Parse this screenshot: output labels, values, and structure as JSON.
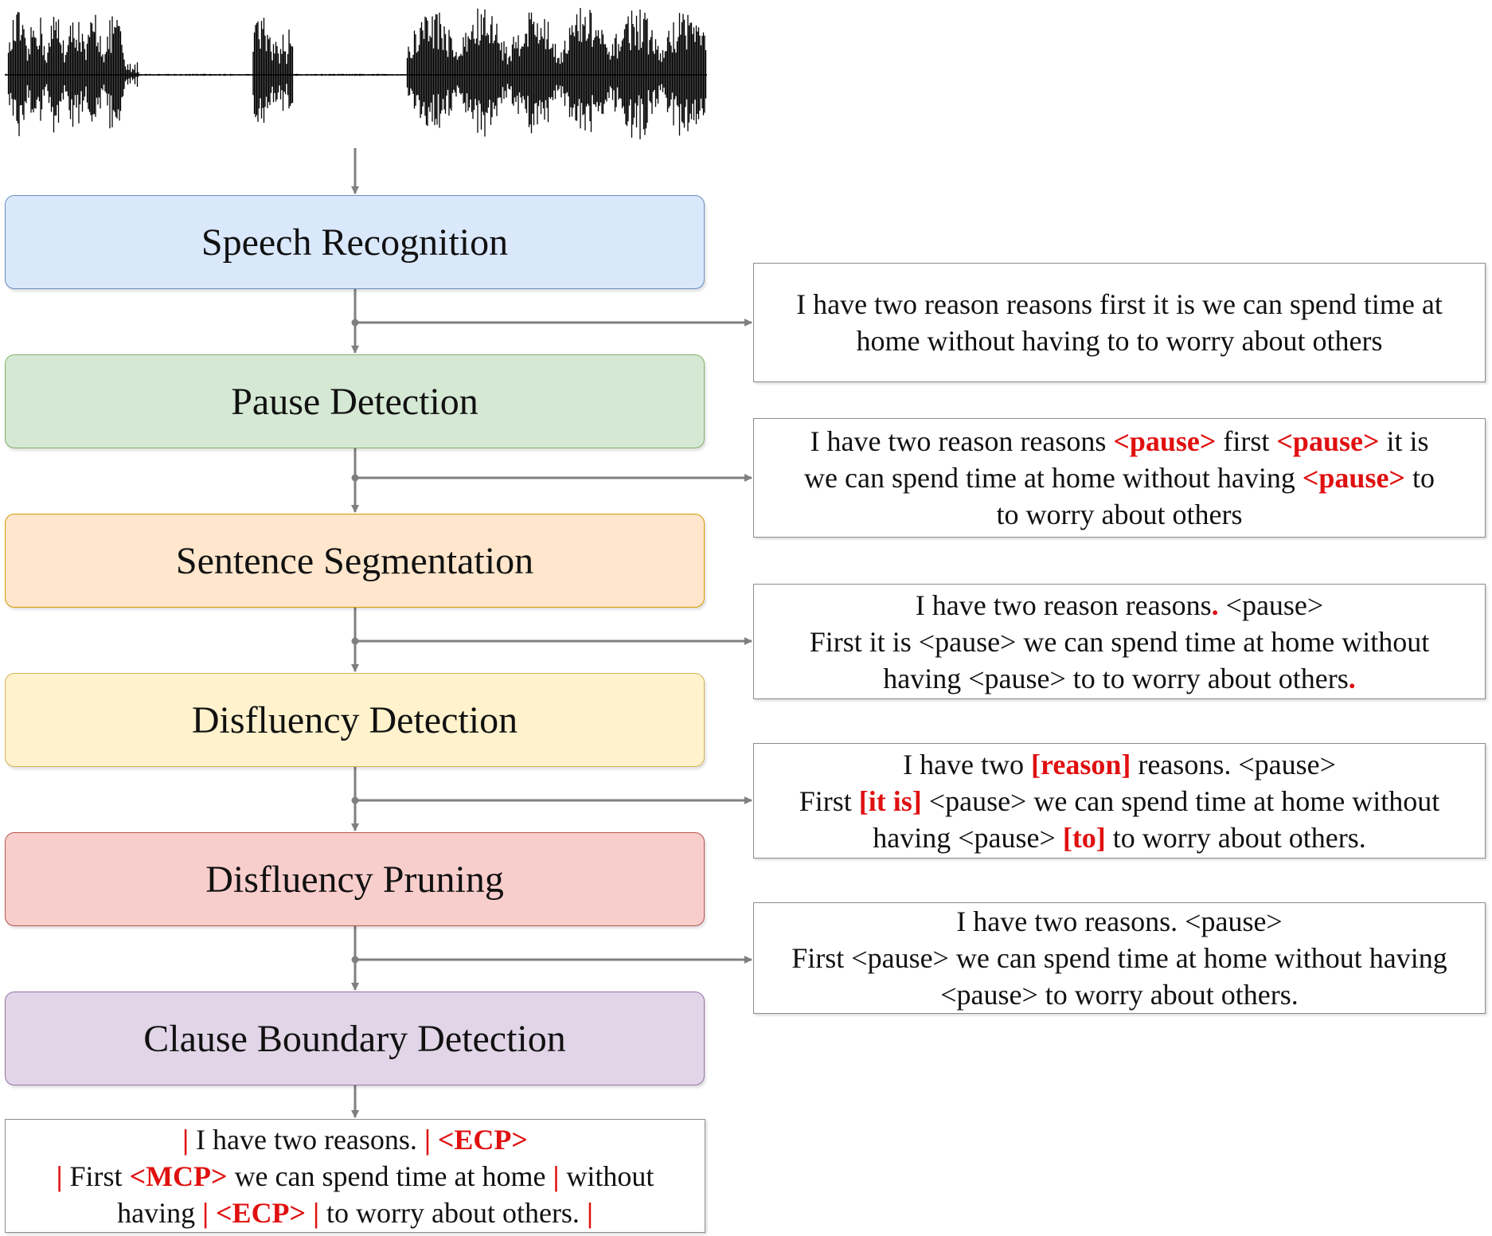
{
  "colors": {
    "connector": "#7f7f7f",
    "highlight": "#e01010",
    "waveform": "#000000"
  },
  "stages": [
    {
      "label": "Speech Recognition",
      "fill": "#dae8fc",
      "border": "#6c8ebf"
    },
    {
      "label": "Pause Detection",
      "fill": "#d5e8d4",
      "border": "#82b366"
    },
    {
      "label": "Sentence Segmentation",
      "fill": "#ffe6cc",
      "border": "#d79b00"
    },
    {
      "label": "Disfluency Detection",
      "fill": "#fff2cc",
      "border": "#d6b656"
    },
    {
      "label": "Disfluency Pruning",
      "fill": "#f8cecc",
      "border": "#b85450"
    },
    {
      "label": "Clause Boundary Detection",
      "fill": "#e1d5e7",
      "border": "#9673a6"
    }
  ],
  "outputs": [
    {
      "lines": [
        [
          {
            "t": "I have two reason reasons first it is we can spend time at"
          }
        ],
        [
          {
            "t": "home without having to to worry about others"
          }
        ]
      ]
    },
    {
      "lines": [
        [
          {
            "t": "I have two reason reasons "
          },
          {
            "t": "<pause>",
            "hl": true
          },
          {
            "t": " first "
          },
          {
            "t": "<pause>",
            "hl": true
          },
          {
            "t": " it is"
          }
        ],
        [
          {
            "t": "we can spend time at home without having "
          },
          {
            "t": "<pause>",
            "hl": true
          },
          {
            "t": " to"
          }
        ],
        [
          {
            "t": "to worry about others"
          }
        ]
      ]
    },
    {
      "lines": [
        [
          {
            "t": "I have two reason reasons"
          },
          {
            "t": ".",
            "hl": true
          },
          {
            "t": " <pause>"
          }
        ],
        [
          {
            "t": "First it is <pause> we can spend time at home without"
          }
        ],
        [
          {
            "t": "having <pause> to to worry about others"
          },
          {
            "t": ".",
            "hl": true
          }
        ]
      ]
    },
    {
      "lines": [
        [
          {
            "t": "I have two "
          },
          {
            "t": "[reason]",
            "hl": true
          },
          {
            "t": " reasons. <pause>"
          }
        ],
        [
          {
            "t": "First "
          },
          {
            "t": "[it is]",
            "hl": true
          },
          {
            "t": " <pause> we can spend time at home without"
          }
        ],
        [
          {
            "t": "having <pause> "
          },
          {
            "t": "[to]",
            "hl": true
          },
          {
            "t": " to worry about others."
          }
        ]
      ]
    },
    {
      "lines": [
        [
          {
            "t": "I have two reasons. <pause>"
          }
        ],
        [
          {
            "t": "First <pause> we can spend time at home without having"
          }
        ],
        [
          {
            "t": "<pause> to worry about others."
          }
        ]
      ]
    }
  ],
  "final_output": {
    "lines": [
      [
        {
          "t": "|",
          "hl": true
        },
        {
          "t": " I have two reasons. "
        },
        {
          "t": "| <ECP>",
          "hl": true
        }
      ],
      [
        {
          "t": "|",
          "hl": true
        },
        {
          "t": " First "
        },
        {
          "t": "<MCP>",
          "hl": true
        },
        {
          "t": " we can spend time at home "
        },
        {
          "t": "|",
          "hl": true
        },
        {
          "t": " without"
        }
      ],
      [
        {
          "t": "having "
        },
        {
          "t": "| <ECP> |",
          "hl": true
        },
        {
          "t": " to worry about others. "
        },
        {
          "t": "|",
          "hl": true
        }
      ]
    ]
  }
}
